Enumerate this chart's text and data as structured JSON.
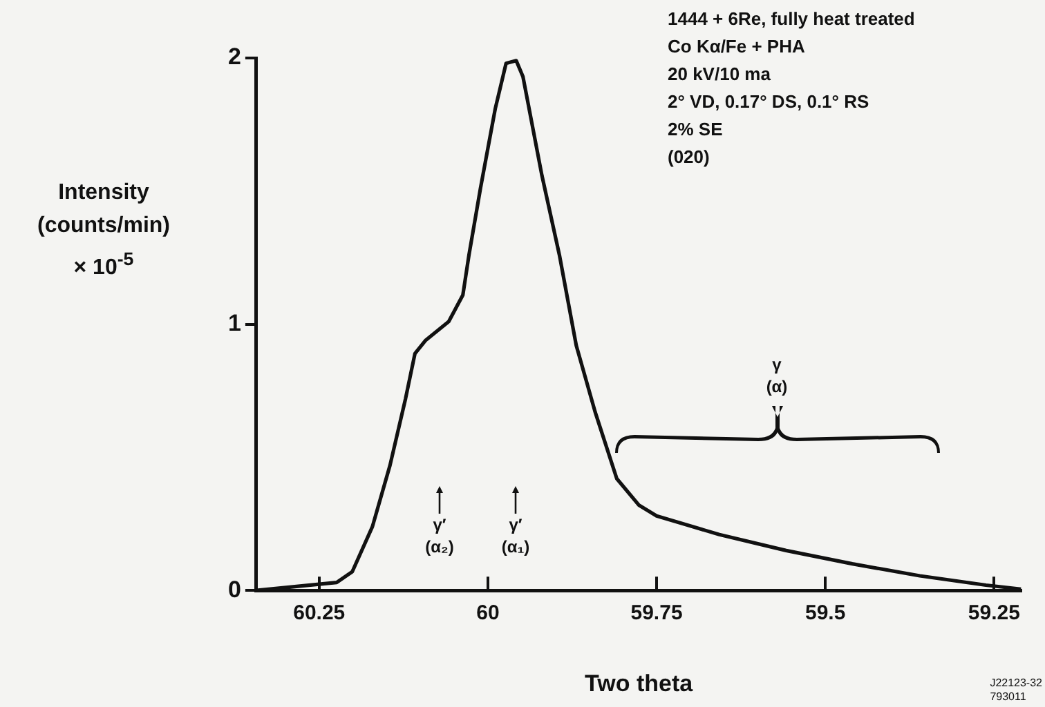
{
  "chart_data": {
    "type": "line",
    "xlabel": "Two theta",
    "ylabel": "Intensity\n(counts/min)\n× 10$^{-5}$",
    "x": [
      60.343,
      60.224,
      60.201,
      60.171,
      60.145,
      60.122,
      60.108,
      60.092,
      60.058,
      60.037,
      60.028,
      60.011,
      59.989,
      59.973,
      59.958,
      59.948,
      59.92,
      59.894,
      59.869,
      59.841,
      59.809,
      59.776,
      59.75,
      59.657,
      59.558,
      59.46,
      59.36,
      59.262,
      59.21
    ],
    "series": [
      {
        "color": "#111111",
        "values": [
          0,
          0.03,
          0.07,
          0.24,
          0.47,
          0.72,
          0.89,
          0.94,
          1.01,
          1.11,
          1.26,
          1.51,
          1.81,
          1.98,
          1.99,
          1.93,
          1.56,
          1.26,
          0.92,
          0.67,
          0.42,
          0.32,
          0.28,
          0.21,
          0.15,
          0.1,
          0.055,
          0.02,
          0.005
        ]
      }
    ],
    "xlim": [
      60.343,
      59.21
    ],
    "xticks": [
      60.25,
      60,
      59.75,
      59.5,
      59.25
    ],
    "ylim": [
      0,
      2
    ],
    "yticks": [
      0,
      1,
      2
    ],
    "grid": false,
    "legend": false,
    "marker": "none",
    "line_style": "solid",
    "annotations": [
      "1444 + 6Re, fully heat treated\nCo Kα/Fe + PHA\n20 kV/10 ma\n2° VD, 0.17° DS, 0.1° RS\n2% SE\n(020)",
      "J22123-32\n793011",
      "γ′\n(α₂)",
      "γ′\n(α₁)",
      "γ\n(α)"
    ]
  }
}
